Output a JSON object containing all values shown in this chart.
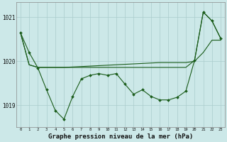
{
  "bg_color": "#cce8e8",
  "grid_color": "#aacccc",
  "line_color": "#1a5c1a",
  "x_values": [
    0,
    1,
    2,
    3,
    4,
    5,
    6,
    7,
    8,
    9,
    10,
    11,
    12,
    13,
    14,
    15,
    16,
    17,
    18,
    19,
    20,
    21,
    22,
    23
  ],
  "jagged": [
    1020.65,
    1020.2,
    1019.85,
    1019.35,
    1018.88,
    1018.68,
    1019.2,
    1019.6,
    1019.68,
    1019.72,
    1019.68,
    1019.72,
    1019.48,
    1019.25,
    1019.35,
    1019.2,
    1019.12,
    1019.12,
    1019.18,
    1019.32,
    1020.02,
    1021.12,
    1020.92,
    1020.52
  ],
  "trend1": [
    1020.65,
    1019.92,
    1019.86,
    1019.86,
    1019.86,
    1019.86,
    1019.87,
    1019.88,
    1019.89,
    1019.9,
    1019.91,
    1019.92,
    1019.93,
    1019.94,
    1019.95,
    1019.96,
    1019.97,
    1019.97,
    1019.97,
    1019.97,
    1020.0,
    1020.2,
    1020.48,
    1020.48
  ],
  "trend2": [
    1020.65,
    1019.92,
    1019.86,
    1019.86,
    1019.86,
    1019.86,
    1019.86,
    1019.86,
    1019.86,
    1019.86,
    1019.86,
    1019.86,
    1019.86,
    1019.86,
    1019.86,
    1019.86,
    1019.86,
    1019.86,
    1019.86,
    1019.86,
    1020.02,
    1021.12,
    1020.92,
    1020.52
  ],
  "ylim_min": 1018.5,
  "ylim_max": 1021.35,
  "ytick_positions": [
    1019.0,
    1020.0,
    1021.0
  ],
  "ytick_labels": [
    "1019",
    "1020",
    "1021"
  ],
  "title": "Graphe pression niveau de la mer (hPa)"
}
